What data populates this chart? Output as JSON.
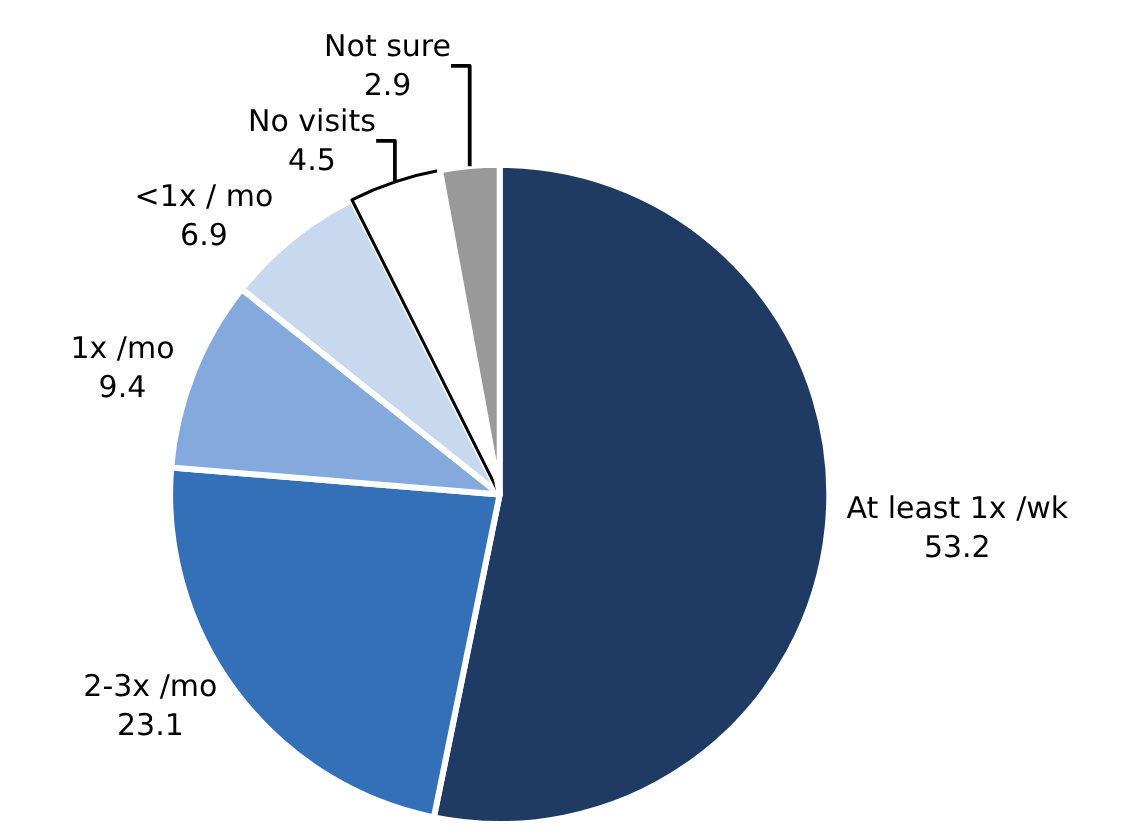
{
  "chart_data": {
    "type": "pie",
    "categories": [
      "At least 1x /wk",
      "2-3x /mo",
      "1x /mo",
      "<1x / mo",
      "No visits",
      "Not sure"
    ],
    "values": [
      53.2,
      23.1,
      9.4,
      6.9,
      4.5,
      2.9
    ],
    "colors": [
      "#1f3b64",
      "#3470b8",
      "#84aadd",
      "#c8d9ef",
      "#ffffff",
      "#999999"
    ],
    "data_labels": true,
    "legend": false
  }
}
